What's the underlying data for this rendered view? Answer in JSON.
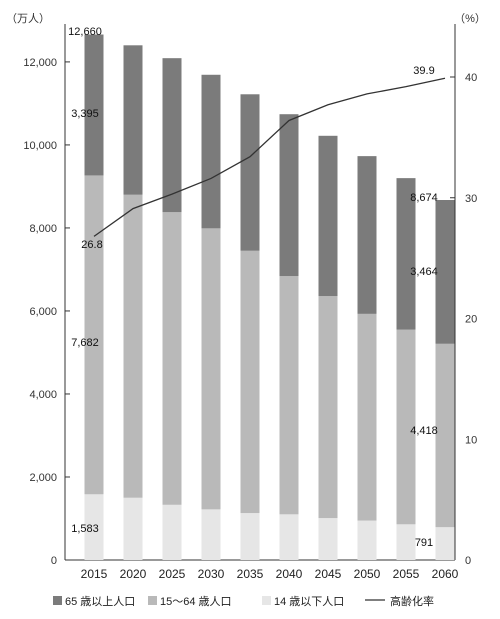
{
  "chart_data": {
    "type": "bar",
    "stacked": true,
    "categories": [
      "2015",
      "2020",
      "2025",
      "2030",
      "2035",
      "2040",
      "2045",
      "2050",
      "2055",
      "2060"
    ],
    "series": [
      {
        "name": "14 歳以下人口",
        "color": "#e6e6e6",
        "values": [
          1583,
          1500,
          1330,
          1220,
          1130,
          1100,
          1010,
          950,
          860,
          791
        ]
      },
      {
        "name": "15～64 歳人口",
        "color": "#b9b9b9",
        "values": [
          7682,
          7300,
          7050,
          6770,
          6320,
          5740,
          5350,
          4980,
          4690,
          4418
        ]
      },
      {
        "name": "65 歳以上人口",
        "color": "#7b7b7b",
        "values": [
          3395,
          3600,
          3710,
          3700,
          3770,
          3900,
          3860,
          3800,
          3650,
          3464
        ]
      }
    ],
    "totals": [
      12660,
      12400,
      12090,
      11690,
      11220,
      10740,
      10220,
      9730,
      9200,
      8674
    ],
    "line": {
      "name": "高齢化率",
      "color": "#333333",
      "values": [
        26.8,
        29.1,
        30.3,
        31.6,
        33.4,
        36.4,
        37.7,
        38.6,
        39.2,
        39.9
      ]
    },
    "y_left": {
      "unit": "（万人）",
      "min": 0,
      "max": 12000,
      "step": 2000,
      "ticks": [
        "0",
        "2,000",
        "4,000",
        "6,000",
        "8,000",
        "10,000",
        "12,000"
      ]
    },
    "y_right": {
      "unit": "（%）",
      "min": 0,
      "max": 40,
      "step": 10,
      "ticks": [
        "0",
        "10",
        "20",
        "30",
        "40"
      ]
    },
    "data_labels": {
      "total_2015": "12,660",
      "old_2015": "3,395",
      "mid_2015": "7,682",
      "young_2015": "1,583",
      "rate_2015": "26.8",
      "total_2060": "8,674",
      "old_2060": "3,464",
      "mid_2060": "4,418",
      "young_2060": "791",
      "rate_2060": "39.9"
    },
    "legend_position": "bottom",
    "grid": false
  }
}
